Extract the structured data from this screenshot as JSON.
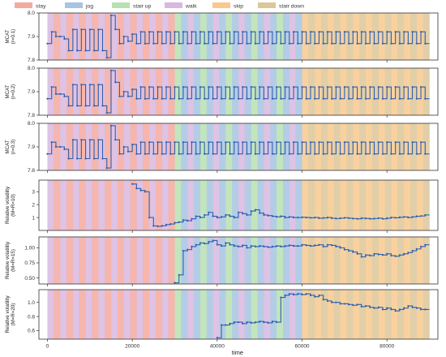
{
  "legend": [
    {
      "label": "stay",
      "color": "#f4a9a0"
    },
    {
      "label": "jog",
      "color": "#a7c4e2"
    },
    {
      "label": "stair up",
      "color": "#b8e0b0"
    },
    {
      "label": "walk",
      "color": "#d8b8df"
    },
    {
      "label": "skip",
      "color": "#f8c98e"
    },
    {
      "label": "stair down",
      "color": "#dcc79a"
    }
  ],
  "line_color": "#2f5fae",
  "chart_data": {
    "type": "line",
    "xlabel": "time",
    "xlim": [
      -2000,
      92000
    ],
    "xticks": [
      0,
      20000,
      40000,
      60000,
      80000
    ],
    "xtick_labels": [
      "0",
      "20000",
      "40000",
      "60000",
      "80000"
    ],
    "bands": {
      "segment_width": 1500,
      "regions": [
        {
          "from": 0,
          "to": 30000,
          "pattern": [
            "walk",
            "stay"
          ]
        },
        {
          "from": 30000,
          "to": 60000,
          "pattern": [
            "stair up",
            "jog",
            "walk",
            "jog"
          ]
        },
        {
          "from": 60000,
          "to": 90000,
          "pattern": [
            "skip",
            "stair down"
          ]
        }
      ]
    },
    "panels": [
      {
        "ylabel_lines": [
          "MCAT",
          "(r=0.1)"
        ],
        "ylim": [
          7.8,
          8.0
        ],
        "yticks": [
          7.8,
          7.9,
          8.0
        ],
        "ytick_labels": [
          "7.8",
          "7.9",
          "8.0"
        ],
        "x": [
          0,
          1000,
          2000,
          3000,
          4000,
          5000,
          6000,
          7000,
          8000,
          9000,
          10000,
          11000,
          12000,
          13000,
          14000,
          15000,
          16000,
          17000,
          18000,
          19000,
          20000,
          21000,
          22000,
          23000,
          24000,
          25000,
          26000,
          27000,
          28000,
          29000,
          30000,
          31000,
          32000,
          33000,
          34000,
          35000,
          36000,
          37000,
          38000,
          39000,
          40000,
          41000,
          42000,
          43000,
          44000,
          45000,
          46000,
          47000,
          48000,
          49000,
          50000,
          51000,
          52000,
          53000,
          54000,
          55000,
          56000,
          57000,
          58000,
          59000,
          60000,
          61000,
          62000,
          63000,
          64000,
          65000,
          66000,
          67000,
          68000,
          69000,
          70000,
          71000,
          72000,
          73000,
          74000,
          75000,
          76000,
          77000,
          78000,
          79000,
          80000,
          81000,
          82000,
          83000,
          84000,
          85000,
          86000,
          87000,
          88000,
          89000
        ],
        "y": [
          7.87,
          7.92,
          7.9,
          7.9,
          7.89,
          7.84,
          7.93,
          7.84,
          7.93,
          7.84,
          7.93,
          7.84,
          7.93,
          7.84,
          7.81,
          7.99,
          7.93,
          7.87,
          7.9,
          7.88,
          7.91,
          7.87,
          7.92,
          7.87,
          7.92,
          7.87,
          7.92,
          7.87,
          7.92,
          7.87,
          7.92,
          7.87,
          7.92,
          7.87,
          7.92,
          7.87,
          7.92,
          7.87,
          7.92,
          7.87,
          7.92,
          7.87,
          7.92,
          7.87,
          7.92,
          7.87,
          7.92,
          7.87,
          7.92,
          7.87,
          7.92,
          7.87,
          7.92,
          7.87,
          7.92,
          7.87,
          7.92,
          7.87,
          7.92,
          7.87,
          7.92,
          7.87,
          7.92,
          7.87,
          7.92,
          7.87,
          7.92,
          7.87,
          7.92,
          7.87,
          7.92,
          7.87,
          7.92,
          7.87,
          7.92,
          7.87,
          7.92,
          7.87,
          7.92,
          7.87,
          7.92,
          7.87,
          7.92,
          7.87,
          7.92,
          7.87,
          7.92,
          7.87,
          7.92,
          7.87
        ]
      },
      {
        "ylabel_lines": [
          "MCAT",
          "(r=0.2)"
        ],
        "ylim": [
          7.8,
          8.0
        ],
        "yticks": [
          7.8,
          7.9,
          8.0
        ],
        "ytick_labels": [
          "7.8",
          "7.9",
          "8.0"
        ],
        "x": [
          0,
          1000,
          2000,
          3000,
          4000,
          5000,
          6000,
          7000,
          8000,
          9000,
          10000,
          11000,
          12000,
          13000,
          14000,
          15000,
          16000,
          17000,
          18000,
          19000,
          20000,
          21000,
          22000,
          23000,
          24000,
          25000,
          26000,
          27000,
          28000,
          29000,
          30000,
          31000,
          32000,
          33000,
          34000,
          35000,
          36000,
          37000,
          38000,
          39000,
          40000,
          41000,
          42000,
          43000,
          44000,
          45000,
          46000,
          47000,
          48000,
          49000,
          50000,
          51000,
          52000,
          53000,
          54000,
          55000,
          56000,
          57000,
          58000,
          59000,
          60000,
          61000,
          62000,
          63000,
          64000,
          65000,
          66000,
          67000,
          68000,
          69000,
          70000,
          71000,
          72000,
          73000,
          74000,
          75000,
          76000,
          77000,
          78000,
          79000,
          80000,
          81000,
          82000,
          83000,
          84000,
          85000,
          86000,
          87000,
          88000,
          89000
        ],
        "y": [
          7.87,
          7.92,
          7.89,
          7.89,
          7.88,
          7.84,
          7.93,
          7.84,
          7.93,
          7.84,
          7.93,
          7.84,
          7.93,
          7.84,
          7.81,
          7.99,
          7.94,
          7.88,
          7.9,
          7.88,
          7.91,
          7.87,
          7.92,
          7.87,
          7.92,
          7.87,
          7.92,
          7.87,
          7.92,
          7.87,
          7.92,
          7.87,
          7.92,
          7.87,
          7.92,
          7.87,
          7.92,
          7.87,
          7.92,
          7.87,
          7.92,
          7.87,
          7.92,
          7.87,
          7.92,
          7.87,
          7.92,
          7.87,
          7.92,
          7.87,
          7.92,
          7.87,
          7.92,
          7.87,
          7.92,
          7.87,
          7.92,
          7.87,
          7.92,
          7.87,
          7.92,
          7.87,
          7.92,
          7.87,
          7.92,
          7.87,
          7.92,
          7.87,
          7.92,
          7.87,
          7.92,
          7.87,
          7.92,
          7.87,
          7.92,
          7.87,
          7.92,
          7.87,
          7.92,
          7.87,
          7.92,
          7.87,
          7.92,
          7.87,
          7.92,
          7.87,
          7.92,
          7.87,
          7.92,
          7.87
        ]
      },
      {
        "ylabel_lines": [
          "MCAT",
          "(r=0.3)"
        ],
        "ylim": [
          7.8,
          8.0
        ],
        "yticks": [
          7.8,
          7.9,
          8.0
        ],
        "ytick_labels": [
          "7.8",
          "7.9",
          "8.0"
        ],
        "x": [
          0,
          1000,
          2000,
          3000,
          4000,
          5000,
          6000,
          7000,
          8000,
          9000,
          10000,
          11000,
          12000,
          13000,
          14000,
          15000,
          16000,
          17000,
          18000,
          19000,
          20000,
          21000,
          22000,
          23000,
          24000,
          25000,
          26000,
          27000,
          28000,
          29000,
          30000,
          31000,
          32000,
          33000,
          34000,
          35000,
          36000,
          37000,
          38000,
          39000,
          40000,
          41000,
          42000,
          43000,
          44000,
          45000,
          46000,
          47000,
          48000,
          49000,
          50000,
          51000,
          52000,
          53000,
          54000,
          55000,
          56000,
          57000,
          58000,
          59000,
          60000,
          61000,
          62000,
          63000,
          64000,
          65000,
          66000,
          67000,
          68000,
          69000,
          70000,
          71000,
          72000,
          73000,
          74000,
          75000,
          76000,
          77000,
          78000,
          79000,
          80000,
          81000,
          82000,
          83000,
          84000,
          85000,
          86000,
          87000,
          88000,
          89000
        ],
        "y": [
          7.87,
          7.92,
          7.9,
          7.9,
          7.89,
          7.85,
          7.93,
          7.85,
          7.93,
          7.85,
          7.93,
          7.85,
          7.93,
          7.85,
          7.81,
          7.99,
          7.93,
          7.87,
          7.9,
          7.88,
          7.91,
          7.87,
          7.92,
          7.87,
          7.92,
          7.87,
          7.92,
          7.87,
          7.92,
          7.87,
          7.92,
          7.87,
          7.92,
          7.87,
          7.92,
          7.87,
          7.92,
          7.87,
          7.92,
          7.87,
          7.92,
          7.87,
          7.92,
          7.87,
          7.92,
          7.87,
          7.92,
          7.87,
          7.92,
          7.87,
          7.92,
          7.87,
          7.92,
          7.87,
          7.92,
          7.87,
          7.92,
          7.87,
          7.92,
          7.87,
          7.92,
          7.87,
          7.92,
          7.87,
          7.92,
          7.87,
          7.92,
          7.87,
          7.92,
          7.87,
          7.92,
          7.87,
          7.92,
          7.87,
          7.92,
          7.87,
          7.92,
          7.87,
          7.92,
          7.87,
          7.92,
          7.87,
          7.92,
          7.87,
          7.92,
          7.87,
          7.92,
          7.87,
          7.92,
          7.87
        ]
      },
      {
        "ylabel_lines": [
          "Relative volatility",
          "(M=R=10)"
        ],
        "ylim": [
          0,
          3.9
        ],
        "yticks": [
          1,
          2,
          3
        ],
        "ytick_labels": [
          "1",
          "2",
          "3"
        ],
        "x": [
          20000,
          21000,
          22000,
          23000,
          24000,
          25000,
          26000,
          27000,
          28000,
          29000,
          30000,
          31000,
          32000,
          33000,
          34000,
          35000,
          36000,
          37000,
          38000,
          39000,
          40000,
          41000,
          42000,
          43000,
          44000,
          45000,
          46000,
          47000,
          48000,
          49000,
          50000,
          51000,
          52000,
          53000,
          54000,
          55000,
          56000,
          57000,
          58000,
          59000,
          60000,
          61000,
          62000,
          63000,
          64000,
          65000,
          66000,
          67000,
          68000,
          69000,
          70000,
          71000,
          72000,
          73000,
          74000,
          75000,
          76000,
          77000,
          78000,
          79000,
          80000,
          81000,
          82000,
          83000,
          84000,
          85000,
          86000,
          87000,
          88000,
          89000
        ],
        "y": [
          3.6,
          3.25,
          3.1,
          3.0,
          1.0,
          0.35,
          0.32,
          0.36,
          0.45,
          0.5,
          0.6,
          0.65,
          0.8,
          0.75,
          0.9,
          1.1,
          1.0,
          1.2,
          1.4,
          1.1,
          1.0,
          1.05,
          1.2,
          1.1,
          1.0,
          1.4,
          1.3,
          1.2,
          1.5,
          1.6,
          1.35,
          1.2,
          1.15,
          1.1,
          1.05,
          1.1,
          1.0,
          1.05,
          1.0,
          1.0,
          1.02,
          1.0,
          0.98,
          1.0,
          0.95,
          0.97,
          1.0,
          0.95,
          0.92,
          0.95,
          0.98,
          0.95,
          0.92,
          0.9,
          0.95,
          0.93,
          0.9,
          0.92,
          0.95,
          0.9,
          0.95,
          1.0,
          0.98,
          1.02,
          1.05,
          1.0,
          1.05,
          1.1,
          1.12,
          1.2
        ]
      },
      {
        "ylabel_lines": [
          "Relative volatility",
          "(M=R=15)"
        ],
        "ylim": [
          0.4,
          1.18
        ],
        "yticks": [
          0.5,
          0.75,
          1.0
        ],
        "ytick_labels": [
          "0.50",
          "0.75",
          "1.00"
        ],
        "x": [
          30000,
          31000,
          32000,
          33000,
          34000,
          35000,
          36000,
          37000,
          38000,
          39000,
          40000,
          41000,
          42000,
          43000,
          44000,
          45000,
          46000,
          47000,
          48000,
          49000,
          50000,
          51000,
          52000,
          53000,
          54000,
          55000,
          56000,
          57000,
          58000,
          59000,
          60000,
          61000,
          62000,
          63000,
          64000,
          65000,
          66000,
          67000,
          68000,
          69000,
          70000,
          71000,
          72000,
          73000,
          74000,
          75000,
          76000,
          77000,
          78000,
          79000,
          80000,
          81000,
          82000,
          83000,
          84000,
          85000,
          86000,
          87000,
          88000,
          89000
        ],
        "y": [
          0.42,
          0.55,
          0.95,
          0.97,
          1.02,
          1.05,
          1.08,
          1.07,
          1.1,
          1.12,
          1.05,
          1.03,
          1.08,
          1.05,
          1.03,
          1.02,
          1.04,
          1.0,
          1.03,
          1.02,
          1.03,
          1.02,
          1.01,
          1.02,
          1.03,
          1.02,
          1.03,
          1.04,
          1.03,
          1.03,
          1.05,
          1.04,
          1.03,
          1.04,
          1.05,
          1.02,
          1.05,
          1.04,
          1.02,
          1.0,
          0.97,
          0.95,
          0.93,
          0.9,
          0.85,
          0.88,
          0.87,
          0.9,
          0.89,
          0.88,
          0.9,
          0.87,
          0.86,
          0.88,
          0.9,
          0.92,
          0.95,
          0.98,
          1.02,
          1.05
        ]
      },
      {
        "ylabel_lines": [
          "Relative volatility",
          "(M=R=20)"
        ],
        "ylim": [
          0.48,
          1.18
        ],
        "yticks": [
          0.6,
          0.8,
          1.0
        ],
        "ytick_labels": [
          "0.6",
          "0.8",
          "1.0"
        ],
        "x": [
          40000,
          41000,
          42000,
          43000,
          44000,
          45000,
          46000,
          47000,
          48000,
          49000,
          50000,
          51000,
          52000,
          53000,
          54000,
          55000,
          56000,
          57000,
          58000,
          59000,
          60000,
          61000,
          62000,
          63000,
          64000,
          65000,
          66000,
          67000,
          68000,
          69000,
          70000,
          71000,
          72000,
          73000,
          74000,
          75000,
          76000,
          77000,
          78000,
          79000,
          80000,
          81000,
          82000,
          83000,
          84000,
          85000,
          86000,
          87000,
          88000,
          89000
        ],
        "y": [
          0.5,
          0.68,
          0.68,
          0.7,
          0.72,
          0.72,
          0.7,
          0.72,
          0.71,
          0.72,
          0.73,
          0.72,
          0.71,
          0.73,
          0.72,
          1.07,
          1.1,
          1.12,
          1.11,
          1.12,
          1.11,
          1.12,
          1.1,
          1.08,
          1.1,
          1.04,
          1.02,
          1.0,
          1.0,
          0.98,
          0.98,
          0.97,
          0.96,
          0.97,
          0.94,
          0.95,
          0.93,
          0.92,
          0.93,
          0.9,
          0.92,
          0.9,
          0.88,
          0.9,
          0.92,
          0.95,
          0.93,
          0.92,
          0.9,
          0.9
        ]
      }
    ]
  }
}
